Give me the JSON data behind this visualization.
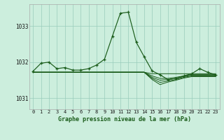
{
  "title": "Graphe pression niveau de la mer (hPa)",
  "background_color": "#cceedd",
  "grid_color": "#99ccbb",
  "line_color": "#1a5c1a",
  "x_labels": [
    "0",
    "1",
    "2",
    "3",
    "4",
    "5",
    "6",
    "7",
    "8",
    "9",
    "10",
    "11",
    "12",
    "13",
    "14",
    "15",
    "16",
    "17",
    "18",
    "19",
    "20",
    "21",
    "22",
    "23"
  ],
  "ylim": [
    1030.7,
    1033.6
  ],
  "yticks": [
    1031,
    1032,
    1033
  ],
  "flat_series": [
    [
      1031.72,
      1031.72,
      1031.72,
      1031.72,
      1031.72,
      1031.72,
      1031.72,
      1031.72,
      1031.72,
      1031.72,
      1031.72,
      1031.72,
      1031.72,
      1031.72,
      1031.72,
      1031.68,
      1031.68,
      1031.68,
      1031.68,
      1031.68,
      1031.68,
      1031.68,
      1031.68,
      1031.68
    ],
    [
      1031.72,
      1031.72,
      1031.72,
      1031.72,
      1031.72,
      1031.72,
      1031.72,
      1031.72,
      1031.72,
      1031.72,
      1031.72,
      1031.72,
      1031.72,
      1031.72,
      1031.72,
      1031.62,
      1031.55,
      1031.55,
      1031.58,
      1031.62,
      1031.66,
      1031.66,
      1031.66,
      1031.66
    ],
    [
      1031.72,
      1031.72,
      1031.72,
      1031.72,
      1031.72,
      1031.72,
      1031.72,
      1031.72,
      1031.72,
      1031.72,
      1031.72,
      1031.72,
      1031.72,
      1031.72,
      1031.72,
      1031.58,
      1031.5,
      1031.52,
      1031.55,
      1031.6,
      1031.64,
      1031.64,
      1031.64,
      1031.64
    ],
    [
      1031.72,
      1031.72,
      1031.72,
      1031.72,
      1031.72,
      1031.72,
      1031.72,
      1031.72,
      1031.72,
      1031.72,
      1031.72,
      1031.72,
      1031.72,
      1031.72,
      1031.72,
      1031.55,
      1031.44,
      1031.48,
      1031.52,
      1031.58,
      1031.62,
      1031.62,
      1031.62,
      1031.62
    ],
    [
      1031.72,
      1031.72,
      1031.72,
      1031.72,
      1031.72,
      1031.72,
      1031.72,
      1031.72,
      1031.72,
      1031.72,
      1031.72,
      1031.72,
      1031.72,
      1031.72,
      1031.72,
      1031.52,
      1031.38,
      1031.45,
      1031.5,
      1031.56,
      1031.6,
      1031.6,
      1031.6,
      1031.6
    ]
  ],
  "main_series": [
    1031.75,
    1031.97,
    1032.0,
    1031.82,
    1031.85,
    1031.78,
    1031.78,
    1031.82,
    1031.92,
    1032.08,
    1032.72,
    1033.35,
    1033.38,
    1032.55,
    1032.15,
    1031.76,
    1031.65,
    1031.52,
    1031.55,
    1031.62,
    1031.68,
    1031.82,
    1031.72,
    1031.65
  ]
}
